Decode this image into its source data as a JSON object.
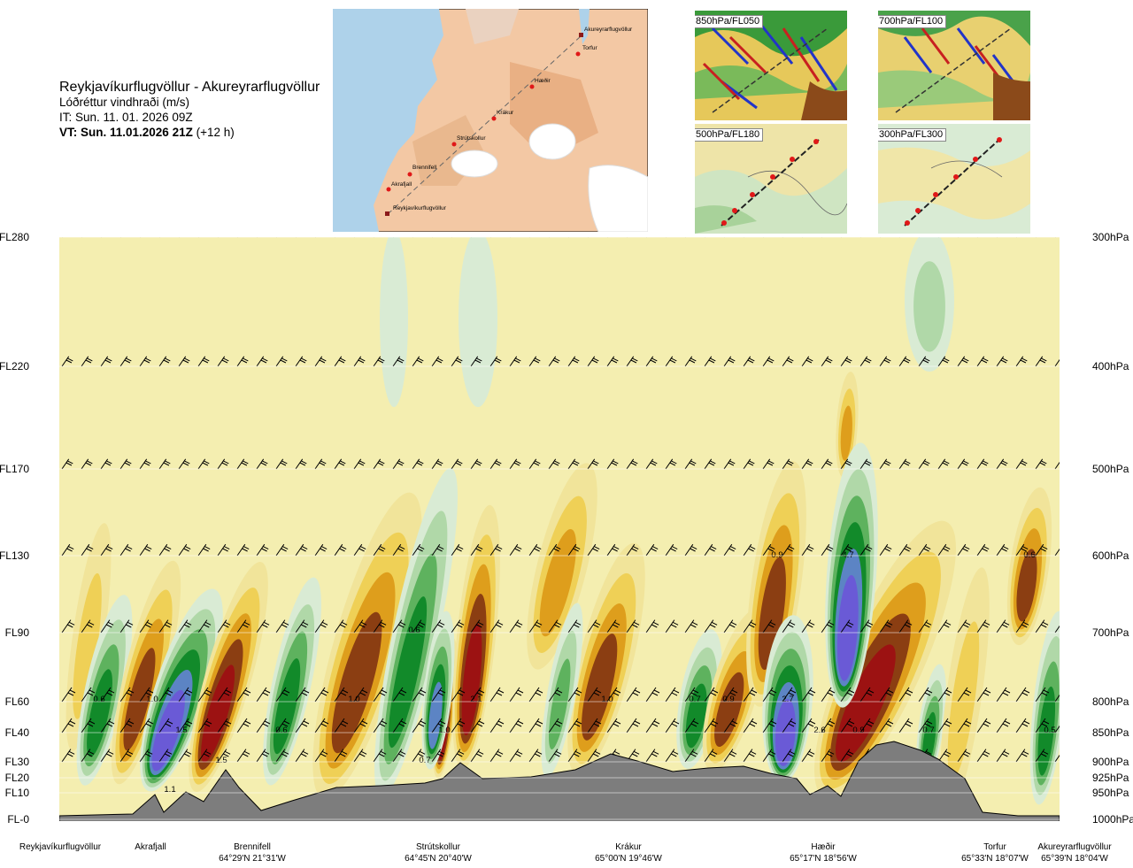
{
  "header": {
    "route_title": "Reykjavíkurflugvöllur - Akureyrarflugvöllur",
    "parameter": "Lóðréttur vindhraði (m/s)",
    "init_time": "IT: Sun. 11. 01. 2026 09Z",
    "valid_time_bold": "VT: Sun. 11.01.2026 21Z",
    "lead_time": "(+12 h)"
  },
  "route_map": {
    "waypoints": [
      "Reykjavíkurflugvöllur",
      "Akrafjall",
      "Brennifell",
      "Strútskollur",
      "Krákur",
      "Hæðir",
      "Torfur",
      "Akureyrarflugvöllur"
    ]
  },
  "thumbnails": [
    {
      "label": "850hPa/FL050"
    },
    {
      "label": "700hPa/FL100"
    },
    {
      "label": "500hPa/FL180"
    },
    {
      "label": "300hPa/FL300"
    }
  ],
  "colors": {
    "terrain": "#7d7d7d",
    "background": "#f4eeb0",
    "pale_green": "#d9ebd4",
    "light_green": "#b0d8a8",
    "mid_green": "#5eb25e",
    "dark_green": "#128a2a",
    "steel_blue": "#5c84c4",
    "violet": "#6a5ad6",
    "pale_yellow": "#f1e49a",
    "yellow": "#efd056",
    "orange": "#de9e1c",
    "brown": "#8b3e12",
    "dark_red": "#9c1212",
    "red": "#e02020"
  },
  "chart_data": {
    "type": "vertical cross-section (contour)",
    "variable": "Lóðréttur vindhraði (m/s)",
    "y_levels_hpa": [
      {
        "fl": "FL280",
        "hpa": "300hPa"
      },
      {
        "fl": "FL220",
        "hpa": "400hPa"
      },
      {
        "fl": "FL170",
        "hpa": "500hPa"
      },
      {
        "fl": "FL130",
        "hpa": "600hPa"
      },
      {
        "fl": "FL90",
        "hpa": "700hPa"
      },
      {
        "fl": "FL60",
        "hpa": "800hPa"
      },
      {
        "fl": "FL40",
        "hpa": "850hPa"
      },
      {
        "fl": "FL30",
        "hpa": "900hPa"
      },
      {
        "fl": "FL20",
        "hpa": "925hPa"
      },
      {
        "fl": "FL10",
        "hpa": "950hPa"
      },
      {
        "fl": "FL-0",
        "hpa": "1000hPa"
      }
    ],
    "waypoints": [
      {
        "name": "Reykjavíkurflugvöllur",
        "coord": ""
      },
      {
        "name": "Akrafjall",
        "coord": ""
      },
      {
        "name": "Brennifell",
        "coord": "64°29'N 21°31'W"
      },
      {
        "name": "Strútskollur",
        "coord": "64°45'N 20°40'W"
      },
      {
        "name": "Krákur",
        "coord": "65°00'N 19°46'W"
      },
      {
        "name": "Hæðir",
        "coord": "65°17'N 18°56'W"
      },
      {
        "name": "Torfur",
        "coord": "65°33'N 18°07'W"
      },
      {
        "name": "Akureyrarflugvöllur",
        "coord": "65°39'N 18°04'W"
      }
    ],
    "contour_labels": [
      "0.6",
      "1.0",
      "1.5",
      "1.1",
      "1.5",
      "0.6",
      "1.0",
      "0.6",
      "0.7",
      "1.0",
      "2.1",
      "1.0",
      "0.7",
      "0.9",
      "2.7",
      "0.9",
      "2.6",
      "0.9",
      "4.7",
      "0.7",
      "0.6",
      "0.5"
    ]
  }
}
